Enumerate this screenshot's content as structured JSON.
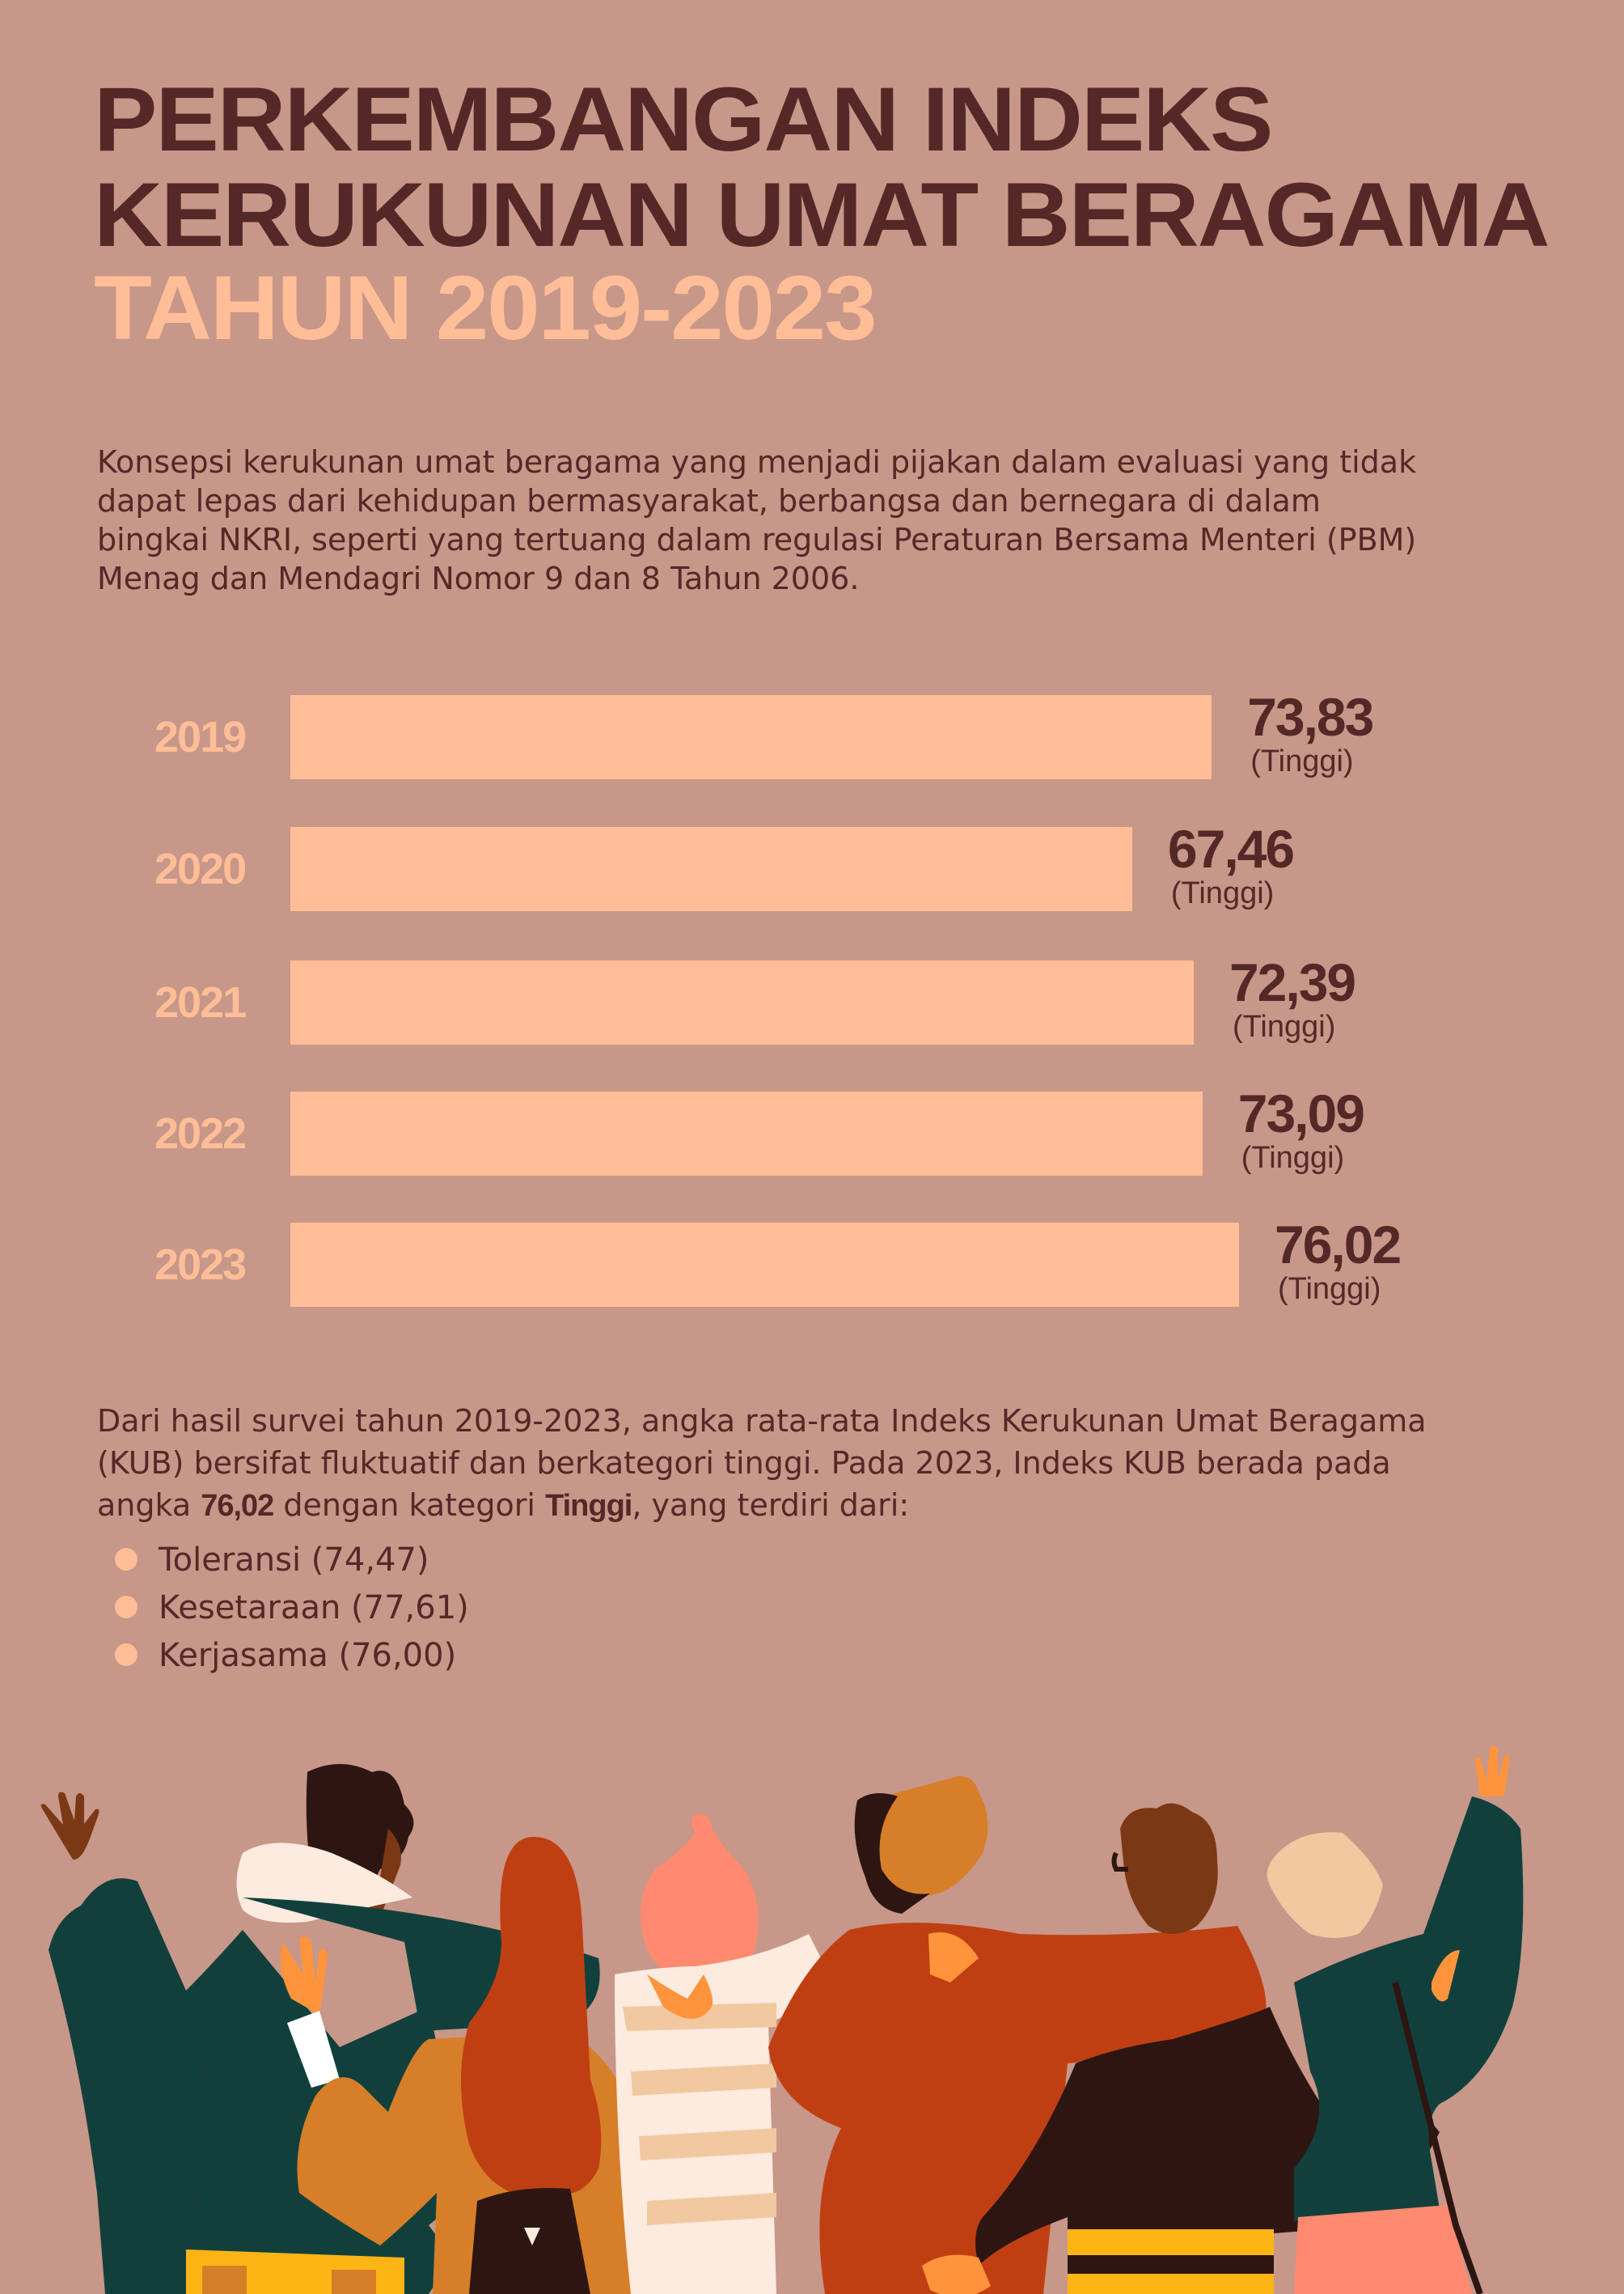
{
  "header": {
    "title_line1": "PERKEMBANGAN INDEKS",
    "title_line2": "KERUKUNAN UMAT BERAGAMA",
    "title_line3": "TAHUN 2019-2023"
  },
  "intro": {
    "lines": [
      "Konsepsi kerukunan umat beragama yang menjadi pijakan dalam evaluasi yang tidak",
      "dapat lepas dari kehidupan bermasyarakat, berbangsa dan bernegara di dalam",
      "bingkai NKRI, seperti yang tertuang dalam regulasi Peraturan Bersama Menteri (PBM)",
      "Menag dan Mendagri Nomor 9 dan 8 Tahun 2006."
    ]
  },
  "chart_data": {
    "type": "bar",
    "orientation": "horizontal",
    "title": "Perkembangan Indeks Kerukunan Umat Beragama Tahun 2019-2023",
    "categories": [
      "2019",
      "2020",
      "2021",
      "2022",
      "2023"
    ],
    "values": [
      73.83,
      67.46,
      72.39,
      73.09,
      76.02
    ],
    "value_labels": [
      "73,83",
      "67,46",
      "72,39",
      "73,09",
      "76,02"
    ],
    "category_labels": [
      "(Tinggi)",
      "(Tinggi)",
      "(Tinggi)",
      "(Tinggi)",
      "(Tinggi)"
    ],
    "xlabel": "",
    "ylabel": "",
    "grid": false,
    "legend": "none",
    "bar_color": "#FFBE98"
  },
  "summary": {
    "line1": "Dari hasil survei tahun 2019-2023, angka rata-rata Indeks Kerukunan Umat Beragama",
    "line2": "(KUB) bersifat fluktuatif dan berkategori tinggi. Pada 2023, Indeks KUB berada pada",
    "line3_pre": "angka ",
    "line3_value": "76,02",
    "line3_mid": " dengan kategori ",
    "line3_category": "Tinggi",
    "line3_post": ", yang terdiri dari:",
    "components": [
      {
        "label": "Toleransi (74,47)"
      },
      {
        "label": "Kesetaraan (77,61)"
      },
      {
        "label": "Kerjasama (76,00)"
      }
    ]
  },
  "colors": {
    "background": "#C79789",
    "dark": "#552828",
    "accent": "#FFBE98"
  }
}
